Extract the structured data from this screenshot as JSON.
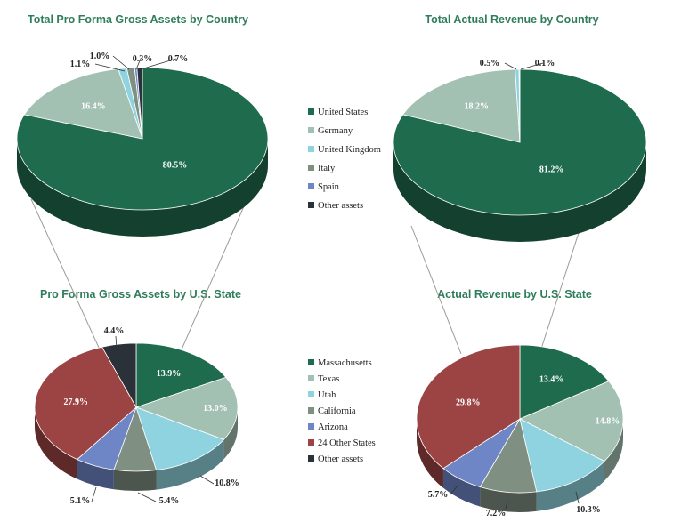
{
  "colors": {
    "title": "#2e7d5b",
    "United States": "#1f6b4e",
    "Germany": "#a3c1b2",
    "United Kingdom": "#8fd3e0",
    "Italy": "#7f8f82",
    "Spain": "#6f86c6",
    "Other assets": "#2b3138",
    "Massachusetts": "#1f6b4e",
    "Texas": "#a3c1b2",
    "Utah": "#8fd3e0",
    "California": "#7f8f82",
    "Arizona": "#6f86c6",
    "24 Other States": "#9c4444"
  },
  "legends": {
    "country": [
      "United States",
      "Germany",
      "United Kingdom",
      "Italy",
      "Spain",
      "Other assets"
    ],
    "state": [
      "Massachusetts",
      "Texas",
      "Utah",
      "California",
      "Arizona",
      "24 Other States",
      "Other assets"
    ]
  },
  "chart_data": [
    {
      "type": "pie",
      "title": "Total Pro Forma Gross Assets by Country",
      "categories": [
        "United States",
        "Germany",
        "United Kingdom",
        "Italy",
        "Spain",
        "Other assets"
      ],
      "values": [
        80.5,
        16.4,
        1.1,
        1.0,
        0.3,
        0.7
      ],
      "labels": [
        "80.5%",
        "16.4%",
        "1.1%",
        "1.0%",
        "0.3%",
        "0.7%"
      ]
    },
    {
      "type": "pie",
      "title": "Total Actual Revenue by Country",
      "categories": [
        "United States",
        "Germany",
        "United Kingdom",
        "Other assets"
      ],
      "values": [
        81.2,
        18.2,
        0.5,
        0.1
      ],
      "labels": [
        "81.2%",
        "18.2%",
        "0.5%",
        "0.1%"
      ]
    },
    {
      "type": "pie",
      "title": "Pro Forma Gross Assets by U.S. State",
      "categories": [
        "Massachusetts",
        "Texas",
        "Utah",
        "California",
        "Arizona",
        "24 Other States",
        "Other assets"
      ],
      "values": [
        13.9,
        13.0,
        10.8,
        5.4,
        5.1,
        27.9,
        4.4
      ],
      "labels": [
        "13.9%",
        "13.0%",
        "10.8%",
        "5.4%",
        "5.1%",
        "27.9%",
        "4.4%"
      ]
    },
    {
      "type": "pie",
      "title": "Actual Revenue by U.S. State",
      "categories": [
        "Massachusetts",
        "Texas",
        "Utah",
        "California",
        "Arizona",
        "24 Other States"
      ],
      "values": [
        13.4,
        14.8,
        10.3,
        7.2,
        5.7,
        29.8
      ],
      "labels": [
        "13.4%",
        "14.8%",
        "10.3%",
        "7.2%",
        "5.7%",
        "29.8%"
      ]
    }
  ]
}
